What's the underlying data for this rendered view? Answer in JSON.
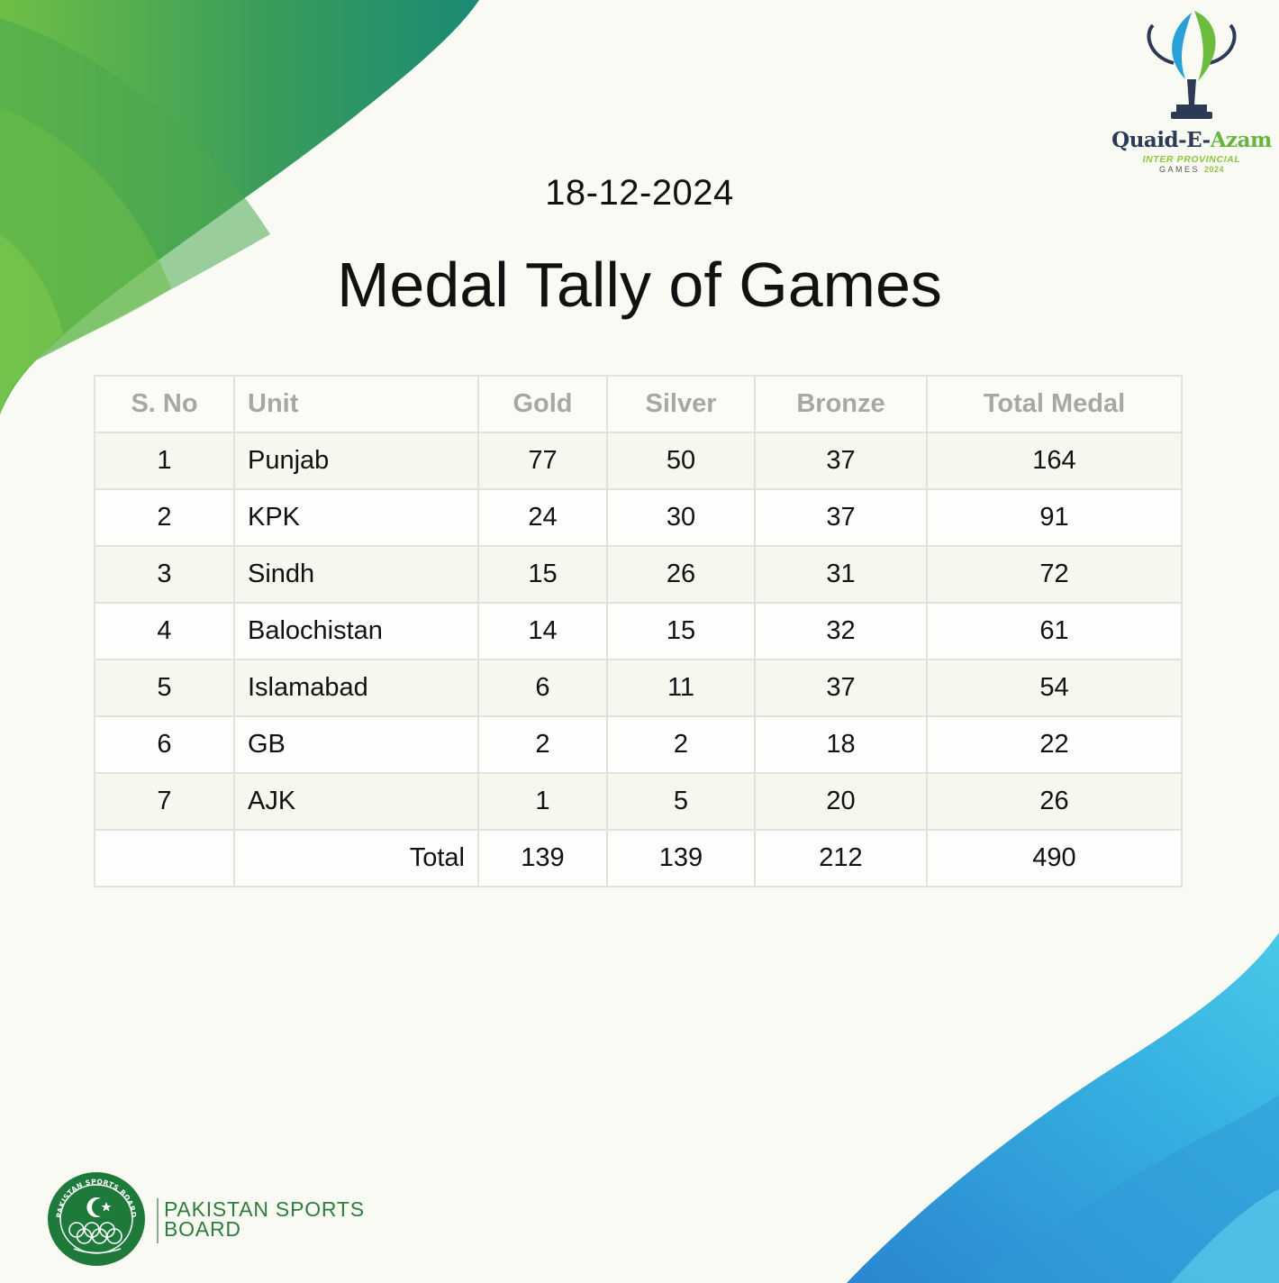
{
  "header": {
    "date": "18-12-2024",
    "title": "Medal Tally of Games"
  },
  "games_logo": {
    "name_part1": "Quaid-E-",
    "name_part2": "Azam",
    "line2": "INTER PROVINCIAL",
    "line3": "GAMES",
    "year": "2024"
  },
  "table": {
    "columns": [
      "S. No",
      "Unit",
      "Gold",
      "Silver",
      "Bronze",
      "Total Medal"
    ],
    "rows": [
      {
        "sno": "1",
        "unit": "Punjab",
        "gold": "77",
        "silver": "50",
        "bronze": "37",
        "total": "164"
      },
      {
        "sno": "2",
        "unit": "KPK",
        "gold": "24",
        "silver": "30",
        "bronze": "37",
        "total": "91"
      },
      {
        "sno": "3",
        "unit": "Sindh",
        "gold": "15",
        "silver": "26",
        "bronze": "31",
        "total": "72"
      },
      {
        "sno": "4",
        "unit": "Balochistan",
        "gold": "14",
        "silver": "15",
        "bronze": "32",
        "total": "61"
      },
      {
        "sno": "5",
        "unit": "Islamabad",
        "gold": "6",
        "silver": "11",
        "bronze": "37",
        "total": "54"
      },
      {
        "sno": "6",
        "unit": "GB",
        "gold": "2",
        "silver": "2",
        "bronze": "18",
        "total": "22"
      },
      {
        "sno": "7",
        "unit": "AJK",
        "gold": "1",
        "silver": "5",
        "bronze": "20",
        "total": "26"
      }
    ],
    "totals": {
      "label": "Total",
      "gold": "139",
      "silver": "139",
      "bronze": "212",
      "total": "490"
    }
  },
  "footer": {
    "org_line1": "PAKISTAN SPORTS",
    "org_line2": "BOARD",
    "seal_text": "PAKISTAN SPORTS BOARD"
  },
  "colors": {
    "green_dark": "#1a8a6e",
    "green_light": "#74c04a",
    "blue_light": "#3fc4e6",
    "blue_dark": "#2a8fd0",
    "seal_green": "#1e7a3a"
  }
}
